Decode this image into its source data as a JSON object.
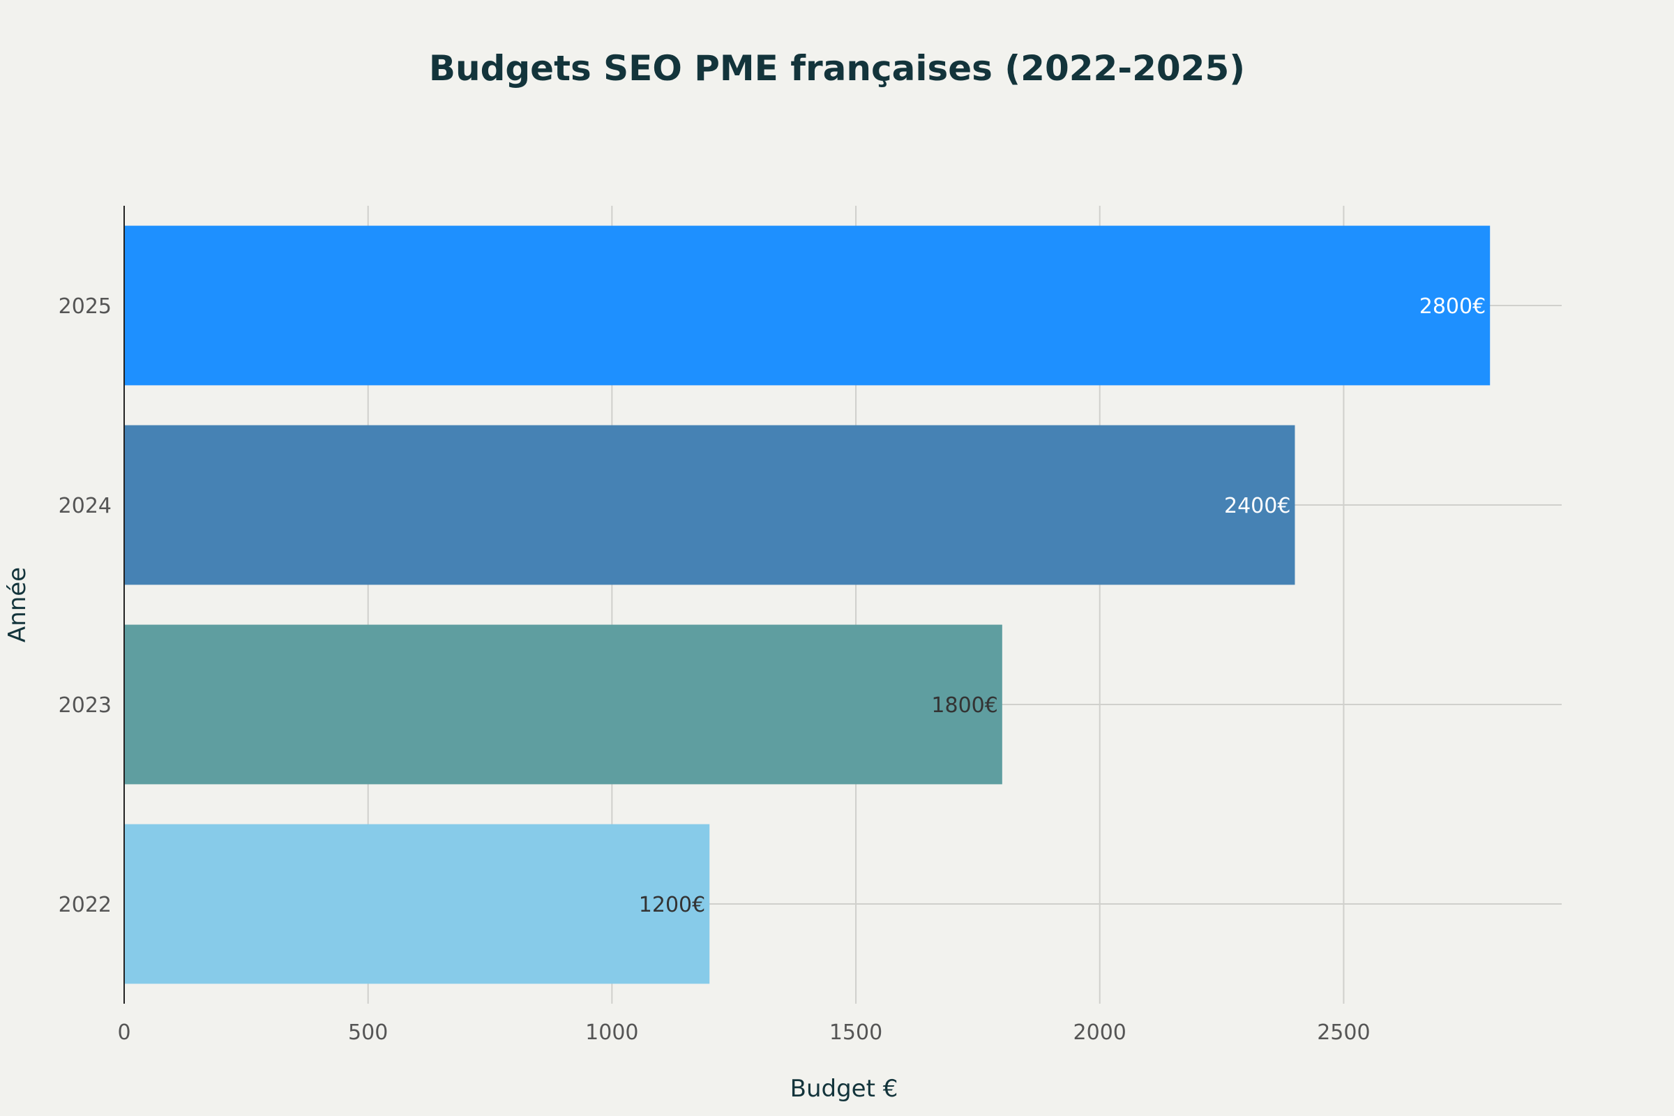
{
  "chart_data": {
    "type": "bar",
    "orientation": "horizontal",
    "title": "Budgets SEO PME françaises (2022-2025)",
    "xlabel": "Budget €",
    "ylabel": "Année",
    "categories": [
      "2022",
      "2023",
      "2024",
      "2025"
    ],
    "values": [
      1200,
      1800,
      2400,
      2800
    ],
    "data_labels": [
      "1200€",
      "1800€",
      "2400€",
      "2800€"
    ],
    "colors": [
      "#87CBE9",
      "#5F9EA0",
      "#4682B4",
      "#1E90FF"
    ],
    "label_colors": [
      "#333333",
      "#333333",
      "#ffffff",
      "#ffffff"
    ],
    "xlim": [
      0,
      2947
    ],
    "xticks": [
      0,
      500,
      1000,
      1500,
      2000,
      2500
    ],
    "grid": true,
    "legend": "none"
  }
}
